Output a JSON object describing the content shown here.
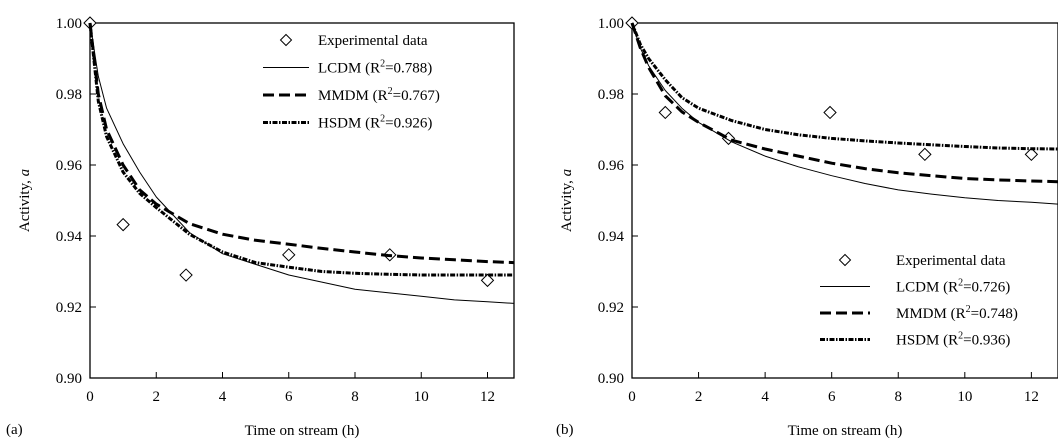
{
  "chart_data": [
    {
      "panel_label": "(a)",
      "type": "line",
      "xlabel": "Time on stream (h)",
      "ylabel": "Activity, a",
      "xlim": [
        0,
        12.8
      ],
      "ylim": [
        0.9,
        1.0
      ],
      "xticks": [
        "0",
        "2",
        "4",
        "6",
        "8",
        "10",
        "12"
      ],
      "yticks": [
        "0.90",
        "0.92",
        "0.94",
        "0.96",
        "0.98",
        "1.00"
      ],
      "grid": false,
      "legend": "top-right",
      "series": [
        {
          "name": "Experimental data",
          "style": "markers-diamond",
          "x": [
            0,
            1,
            2.9,
            6,
            9.05,
            12
          ],
          "y": [
            1.0,
            0.9432,
            0.929,
            0.9347,
            0.9347,
            0.9275
          ]
        },
        {
          "name": "LCDM (R²=0.788)",
          "style": "solid-thin",
          "x": [
            0,
            0.25,
            0.5,
            1,
            1.5,
            2,
            3,
            4,
            5,
            6,
            7,
            8,
            9,
            10,
            11,
            12,
            12.8
          ],
          "y": [
            1.0,
            0.985,
            0.976,
            0.966,
            0.958,
            0.951,
            0.941,
            0.935,
            0.932,
            0.929,
            0.927,
            0.925,
            0.924,
            0.923,
            0.922,
            0.9215,
            0.921
          ]
        },
        {
          "name": "MMDM (R²=0.767)",
          "style": "dashed-thick",
          "x": [
            0,
            0.25,
            0.5,
            1,
            1.5,
            2,
            3,
            4,
            5,
            6,
            7,
            8,
            9,
            10,
            11,
            12,
            12.8
          ],
          "y": [
            1.0,
            0.98,
            0.97,
            0.96,
            0.953,
            0.949,
            0.9435,
            0.9405,
            0.9388,
            0.9377,
            0.9365,
            0.9355,
            0.9345,
            0.9338,
            0.9333,
            0.9328,
            0.9325
          ]
        },
        {
          "name": "HSDM (R²=0.926)",
          "style": "dash-dot",
          "x": [
            0,
            0.25,
            0.5,
            1,
            1.5,
            2,
            3,
            4,
            5,
            6,
            7,
            8,
            9,
            10,
            11,
            12,
            12.8
          ],
          "y": [
            1.0,
            0.978,
            0.968,
            0.958,
            0.952,
            0.948,
            0.9405,
            0.9355,
            0.9325,
            0.9312,
            0.93,
            0.9295,
            0.9292,
            0.929,
            0.929,
            0.929,
            0.929
          ]
        }
      ]
    },
    {
      "panel_label": "(b)",
      "type": "line",
      "xlabel": "Time on stream (h)",
      "ylabel": "Activity, a",
      "xlim": [
        0,
        12.8
      ],
      "ylim": [
        0.9,
        1.0
      ],
      "xticks": [
        "0",
        "2",
        "4",
        "6",
        "8",
        "10",
        "12"
      ],
      "yticks": [
        "0.90",
        "0.92",
        "0.94",
        "0.96",
        "0.98",
        "1.00"
      ],
      "grid": false,
      "legend": "bottom-right",
      "series": [
        {
          "name": "Experimental data",
          "style": "markers-diamond",
          "x": [
            0,
            1,
            2.9,
            5.95,
            8.8,
            12
          ],
          "y": [
            1.0,
            0.9748,
            0.9675,
            0.9748,
            0.963,
            0.963
          ]
        },
        {
          "name": "LCDM (R²=0.726)",
          "style": "solid-thin",
          "x": [
            0,
            0.25,
            0.5,
            1,
            1.5,
            2,
            3,
            4,
            5,
            6,
            7,
            8,
            9,
            10,
            11,
            12,
            12.8
          ],
          "y": [
            1.0,
            0.993,
            0.988,
            0.981,
            0.976,
            0.972,
            0.9665,
            0.9625,
            0.9595,
            0.957,
            0.9548,
            0.953,
            0.9518,
            0.9508,
            0.95,
            0.9495,
            0.949
          ]
        },
        {
          "name": "MMDM (R²=0.748)",
          "style": "dashed-thick",
          "x": [
            0,
            0.25,
            0.5,
            1,
            1.5,
            2,
            3,
            4,
            5,
            6,
            7,
            8,
            9,
            10,
            11,
            12,
            12.8
          ],
          "y": [
            1.0,
            0.993,
            0.9875,
            0.9795,
            0.975,
            0.972,
            0.967,
            0.9645,
            0.9625,
            0.9605,
            0.959,
            0.9578,
            0.957,
            0.9562,
            0.9558,
            0.9555,
            0.9553
          ]
        },
        {
          "name": "HSDM (R²=0.936)",
          "style": "dash-dot",
          "x": [
            0,
            0.25,
            0.5,
            1,
            1.5,
            2,
            3,
            4,
            5,
            6,
            7,
            8,
            9,
            10,
            11,
            12,
            12.8
          ],
          "y": [
            1.0,
            0.994,
            0.99,
            0.984,
            0.979,
            0.976,
            0.9725,
            0.97,
            0.9685,
            0.9675,
            0.9668,
            0.9662,
            0.9657,
            0.9652,
            0.9648,
            0.9646,
            0.9645
          ]
        }
      ]
    }
  ]
}
